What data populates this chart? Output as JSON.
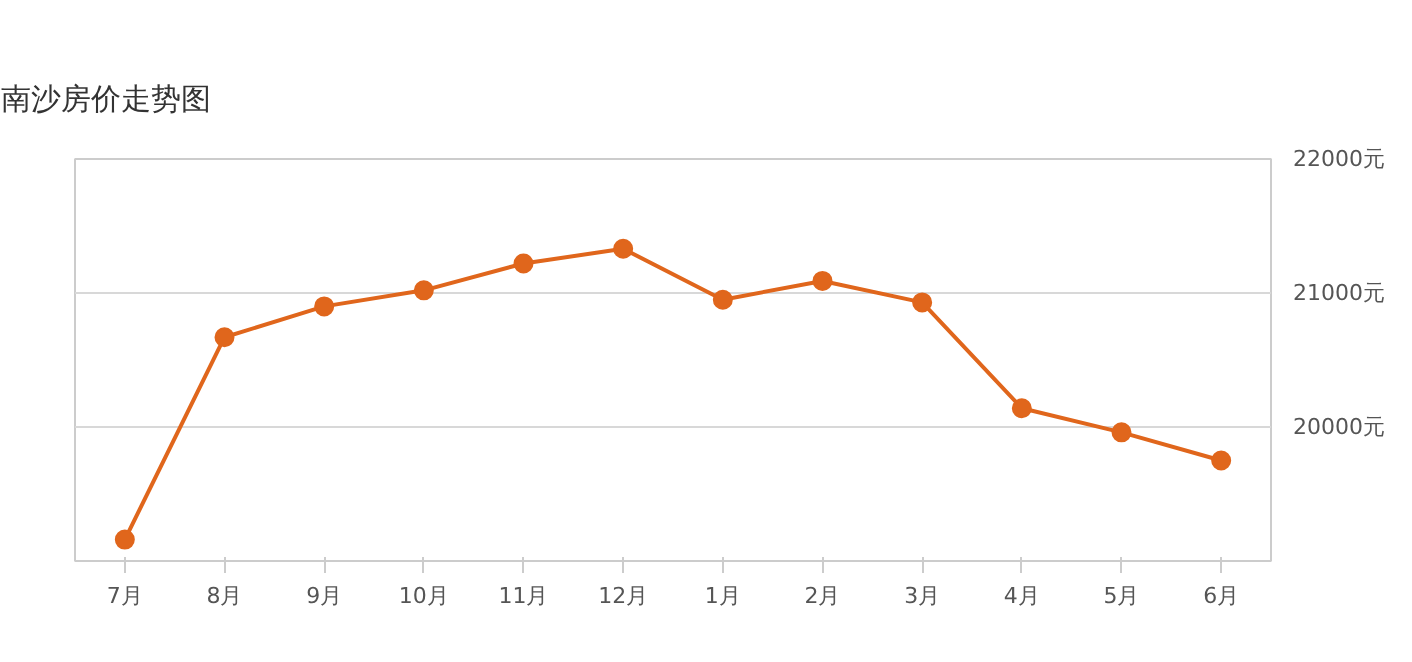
{
  "chart_data": {
    "type": "line",
    "title": "南沙房价走势图",
    "categories": [
      "7月",
      "8月",
      "9月",
      "10月",
      "11月",
      "12月",
      "1月",
      "2月",
      "3月",
      "4月",
      "5月",
      "6月"
    ],
    "series": [
      {
        "color": "#e0661c",
        "values": [
          19160,
          20670,
          20900,
          21020,
          21220,
          21330,
          20950,
          21090,
          20930,
          20140,
          19960,
          19750
        ]
      }
    ],
    "ylim": [
      19000,
      22000
    ],
    "yticks": [
      {
        "value": 19000,
        "label": null
      },
      {
        "value": 20000,
        "label": "20000元"
      },
      {
        "value": 21000,
        "label": "21000元"
      },
      {
        "value": 22000,
        "label": "22000元"
      }
    ],
    "grid": "y",
    "marker": "circle",
    "line_style": "solid"
  }
}
